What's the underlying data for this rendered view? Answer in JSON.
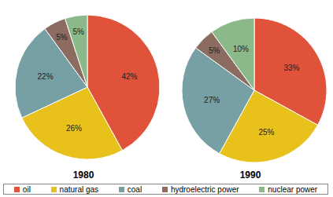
{
  "chart_data": [
    {
      "type": "pie",
      "title": "1980",
      "categories": [
        "oil",
        "natural gas",
        "coal",
        "hydroelectric power",
        "nuclear power"
      ],
      "values": [
        42,
        26,
        22,
        5,
        5
      ],
      "value_labels": [
        "42%",
        "26%",
        "22%",
        "5%",
        "5%"
      ],
      "colors": [
        "#e0533a",
        "#e8c21a",
        "#76a0a3",
        "#8c6c60",
        "#8cb98a"
      ],
      "data_labels": true,
      "legend": "bottom"
    },
    {
      "type": "pie",
      "title": "1990",
      "categories": [
        "oil",
        "natural gas",
        "coal",
        "hydroelectric power",
        "nuclear power"
      ],
      "values": [
        33,
        25,
        27,
        5,
        10
      ],
      "value_labels": [
        "33%",
        "25%",
        "27%",
        "5%",
        "10%"
      ],
      "colors": [
        "#e0533a",
        "#e8c21a",
        "#76a0a3",
        "#8c6c60",
        "#8cb98a"
      ],
      "data_labels": true,
      "legend": "bottom"
    }
  ]
}
